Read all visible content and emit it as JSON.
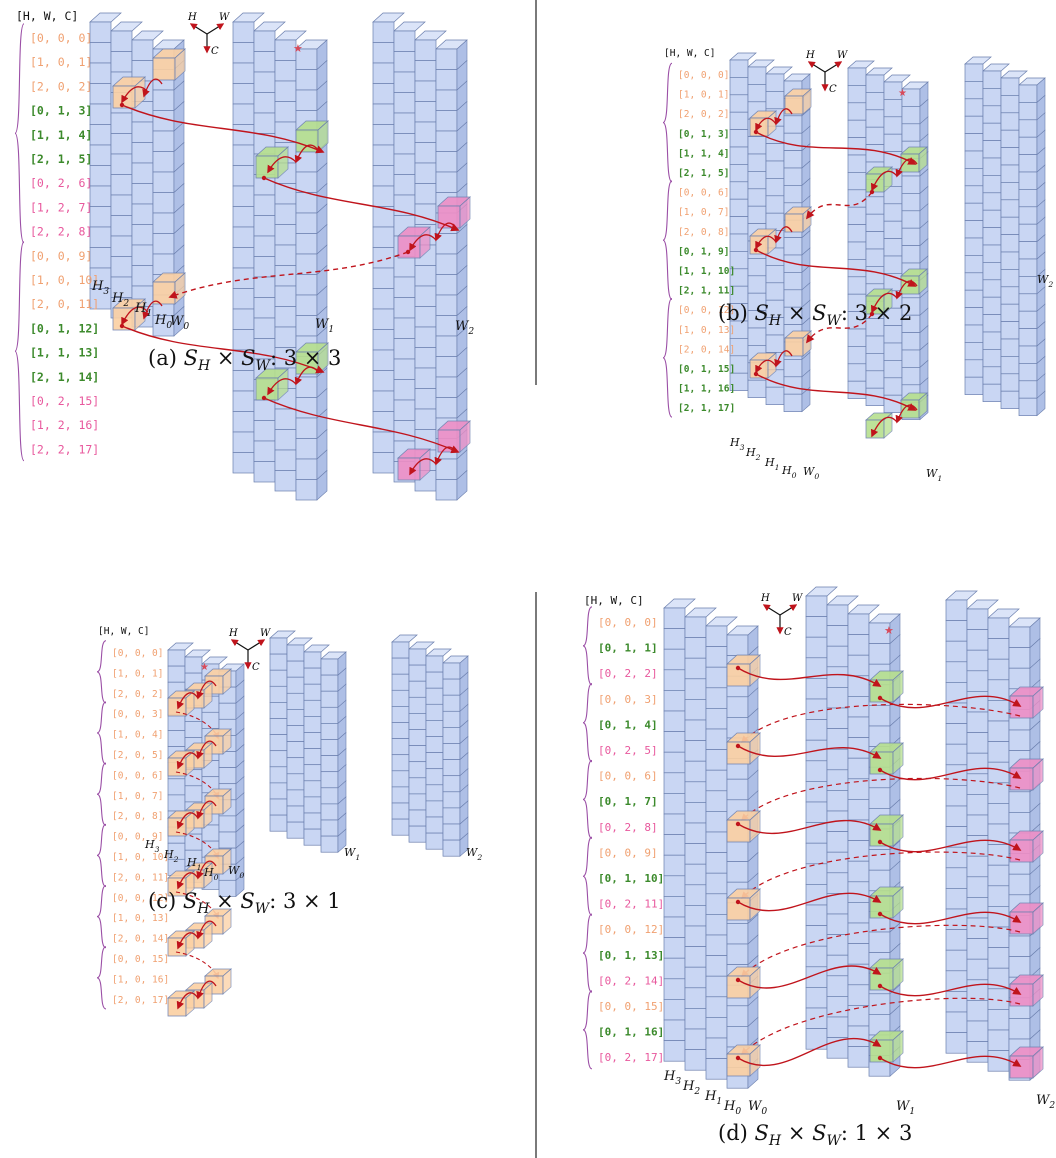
{
  "colors": {
    "block": "#c9d6f3",
    "block_top": "#dbe4f8",
    "block_side": "#aebfe6",
    "edge": "#6b7fae",
    "orange": "#fbd0a3",
    "green": "#b6df8e",
    "pink": "#ee8fc6",
    "lilac": "#d3a7dd",
    "arrow": "#c0141c",
    "label_orange": "#f0a070",
    "label_green": "#3c8a2c",
    "label_pink": "#e8589d",
    "brace_purple": "#9b4fa6"
  },
  "axes_widget": {
    "h": "H",
    "w": "W",
    "c": "C"
  },
  "header_label": "[H, W, C]",
  "star": "★",
  "h_labels": [
    "H",
    "H",
    "H",
    "H"
  ],
  "h_subs": [
    "3",
    "2",
    "1",
    "0"
  ],
  "w_label": "W",
  "w_subs": [
    "0",
    "1",
    "2"
  ],
  "panels": {
    "a": {
      "caption_letter": "(a)",
      "caption_ratio": "3 × 3",
      "labels": [
        [
          "[0, 0, 0]",
          "orange"
        ],
        [
          "[1, 0, 1]",
          "orange"
        ],
        [
          "[2, 0, 2]",
          "orange"
        ],
        [
          "[0, 1, 3]",
          "green"
        ],
        [
          "[1, 1, 4]",
          "green"
        ],
        [
          "[2, 1, 5]",
          "green"
        ],
        [
          "[0, 2, 6]",
          "pink"
        ],
        [
          "[1, 2, 7]",
          "pink"
        ],
        [
          "[2, 2, 8]",
          "pink"
        ],
        [
          "[0, 0, 9]",
          "orange"
        ],
        [
          "[1, 0, 10]",
          "orange"
        ],
        [
          "[2, 0, 11]",
          "orange"
        ],
        [
          "[0, 1, 12]",
          "green"
        ],
        [
          "[1, 1, 13]",
          "green"
        ],
        [
          "[2, 1, 14]",
          "green"
        ],
        [
          "[0, 2, 15]",
          "pink"
        ],
        [
          "[1, 2, 16]",
          "pink"
        ],
        [
          "[2, 2, 17]",
          "pink"
        ]
      ]
    },
    "b": {
      "caption_letter": "(b)",
      "caption_ratio": "3 × 2",
      "labels": [
        [
          "[0, 0, 0]",
          "orange"
        ],
        [
          "[1, 0, 1]",
          "orange"
        ],
        [
          "[2, 0, 2]",
          "orange"
        ],
        [
          "[0, 1, 3]",
          "green"
        ],
        [
          "[1, 1, 4]",
          "green"
        ],
        [
          "[2, 1, 5]",
          "green"
        ],
        [
          "[0, 0, 6]",
          "orange"
        ],
        [
          "[1, 0, 7]",
          "orange"
        ],
        [
          "[2, 0, 8]",
          "orange"
        ],
        [
          "[0, 1, 9]",
          "green"
        ],
        [
          "[1, 1, 10]",
          "green"
        ],
        [
          "[2, 1, 11]",
          "green"
        ],
        [
          "[0, 0, 12]",
          "orange"
        ],
        [
          "[1, 0, 13]",
          "orange"
        ],
        [
          "[2, 0, 14]",
          "orange"
        ],
        [
          "[0, 1, 15]",
          "green"
        ],
        [
          "[1, 1, 16]",
          "green"
        ],
        [
          "[2, 1, 17]",
          "green"
        ]
      ]
    },
    "c": {
      "caption_letter": "(c)",
      "caption_ratio": "3 × 1",
      "labels": [
        [
          "[0, 0, 0]",
          "orange"
        ],
        [
          "[1, 0, 1]",
          "orange"
        ],
        [
          "[2, 0, 2]",
          "orange"
        ],
        [
          "[0, 0, 3]",
          "orange"
        ],
        [
          "[1, 0, 4]",
          "orange"
        ],
        [
          "[2, 0, 5]",
          "orange"
        ],
        [
          "[0, 0, 6]",
          "orange"
        ],
        [
          "[1, 0, 7]",
          "orange"
        ],
        [
          "[2, 0, 8]",
          "orange"
        ],
        [
          "[0, 0, 9]",
          "orange"
        ],
        [
          "[1, 0, 10]",
          "orange"
        ],
        [
          "[2, 0, 11]",
          "orange"
        ],
        [
          "[0, 0, 12]",
          "orange"
        ],
        [
          "[1, 0, 13]",
          "orange"
        ],
        [
          "[2, 0, 14]",
          "orange"
        ],
        [
          "[0, 0, 15]",
          "orange"
        ],
        [
          "[1, 0, 16]",
          "orange"
        ],
        [
          "[2, 0, 17]",
          "orange"
        ]
      ]
    },
    "d": {
      "caption_letter": "(d)",
      "caption_ratio": "1 × 3",
      "labels": [
        [
          "[0, 0, 0]",
          "orange"
        ],
        [
          "[0, 1, 1]",
          "green"
        ],
        [
          "[0, 2, 2]",
          "pink"
        ],
        [
          "[0, 0, 3]",
          "orange"
        ],
        [
          "[0, 1, 4]",
          "green"
        ],
        [
          "[0, 2, 5]",
          "pink"
        ],
        [
          "[0, 0, 6]",
          "orange"
        ],
        [
          "[0, 1, 7]",
          "green"
        ],
        [
          "[0, 2, 8]",
          "pink"
        ],
        [
          "[0, 0, 9]",
          "orange"
        ],
        [
          "[0, 1, 10]",
          "green"
        ],
        [
          "[0, 2, 11]",
          "pink"
        ],
        [
          "[0, 0, 12]",
          "orange"
        ],
        [
          "[0, 1, 13]",
          "green"
        ],
        [
          "[0, 2, 14]",
          "pink"
        ],
        [
          "[0, 0, 15]",
          "orange"
        ],
        [
          "[0, 1, 16]",
          "green"
        ],
        [
          "[0, 2, 17]",
          "pink"
        ]
      ]
    }
  }
}
